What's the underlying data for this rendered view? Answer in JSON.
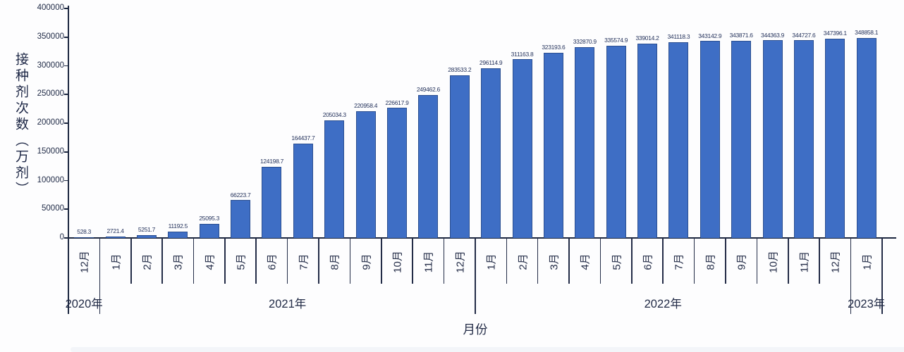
{
  "chart_data": {
    "type": "bar",
    "title": "",
    "xlabel": "月份",
    "ylabel": "接种剂次数（万剂）",
    "ylim": [
      0,
      400000
    ],
    "yticks": [
      0,
      50000,
      100000,
      150000,
      200000,
      250000,
      300000,
      350000,
      400000
    ],
    "grid": false,
    "legend": null,
    "bar_color": "#3E6EC5",
    "axis_color": "#1c2740",
    "year_groups": [
      {
        "label": "2020年",
        "month_count": 1
      },
      {
        "label": "2021年",
        "month_count": 12
      },
      {
        "label": "2022年",
        "month_count": 12
      },
      {
        "label": "2023年",
        "month_count": 1
      }
    ],
    "categories": [
      "12月",
      "1月",
      "2月",
      "3月",
      "4月",
      "5月",
      "6月",
      "7月",
      "8月",
      "9月",
      "10月",
      "11月",
      "12月",
      "1月",
      "2月",
      "3月",
      "4月",
      "5月",
      "6月",
      "7月",
      "8月",
      "9月",
      "10月",
      "11月",
      "12月",
      "1月"
    ],
    "values": [
      528.3,
      2721.4,
      5251.7,
      11192.5,
      25095.3,
      66223.7,
      124198.7,
      164437.7,
      205034.3,
      220958.4,
      226617.9,
      249462.6,
      283533.2,
      296114.9,
      311163.8,
      323193.6,
      332870.9,
      335574.9,
      339014.2,
      341118.3,
      343142.9,
      343871.6,
      344363.9,
      344727.6,
      347396.1,
      348858.1
    ],
    "value_labels": [
      "528.3",
      "2721.4",
      "5251.7",
      "11192.5",
      "25095.3",
      "66223.7",
      "124198.7",
      "164437.7",
      "205034.3",
      "220958.4",
      "226617.9",
      "249462.6",
      "283533.2",
      "296114.9",
      "311163.8",
      "323193.6",
      "332870.9",
      "335574.9",
      "339014.2",
      "341118.3",
      "343142.9",
      "343871.6",
      "344363.9",
      "344727.6",
      "347396.1",
      "348858.1"
    ]
  }
}
